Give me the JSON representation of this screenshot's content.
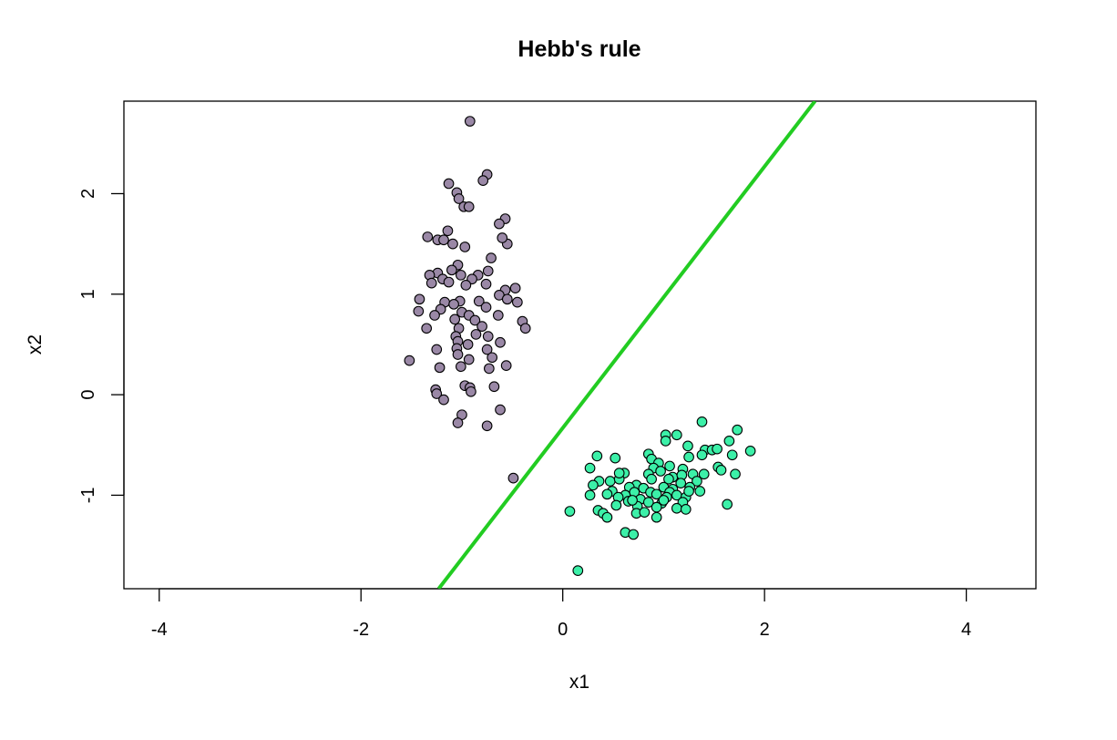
{
  "chart_data": {
    "type": "scatter",
    "title": "Hebb's rule",
    "xlabel": "x1",
    "ylabel": "x2",
    "xlim": [
      -4.35,
      4.69
    ],
    "ylim": [
      -1.93,
      2.92
    ],
    "xticks": [
      -4,
      -2,
      0,
      2,
      4
    ],
    "yticks": [
      -1,
      0,
      1,
      2
    ],
    "grid": false,
    "legend": "none",
    "decision_line": {
      "color": "#22cc22",
      "points": [
        [
          -1.23,
          -1.93
        ],
        [
          2.5,
          2.92
        ]
      ]
    },
    "series": [
      {
        "color": "#9a88a6",
        "points": [
          [
            -0.92,
            2.72
          ],
          [
            -0.75,
            2.19
          ],
          [
            -1.13,
            2.1
          ],
          [
            -0.79,
            2.13
          ],
          [
            -1.05,
            2.01
          ],
          [
            -1.03,
            1.95
          ],
          [
            -0.98,
            1.87
          ],
          [
            -0.93,
            1.87
          ],
          [
            -0.57,
            1.75
          ],
          [
            -0.63,
            1.7
          ],
          [
            -1.14,
            1.63
          ],
          [
            -1.34,
            1.57
          ],
          [
            -1.24,
            1.54
          ],
          [
            -1.18,
            1.54
          ],
          [
            -1.09,
            1.5
          ],
          [
            -0.97,
            1.47
          ],
          [
            -0.55,
            1.5
          ],
          [
            -0.6,
            1.56
          ],
          [
            -0.71,
            1.36
          ],
          [
            -0.74,
            1.23
          ],
          [
            -1.24,
            1.21
          ],
          [
            -1.04,
            1.29
          ],
          [
            -0.84,
            1.19
          ],
          [
            -1.32,
            1.19
          ],
          [
            -1.1,
            1.24
          ],
          [
            -1.01,
            1.19
          ],
          [
            -1.19,
            1.15
          ],
          [
            -0.9,
            1.15
          ],
          [
            -1.3,
            1.11
          ],
          [
            -1.13,
            1.12
          ],
          [
            -0.96,
            1.09
          ],
          [
            -0.76,
            1.1
          ],
          [
            -0.47,
            1.06
          ],
          [
            -0.57,
            1.04
          ],
          [
            -0.63,
            0.99
          ],
          [
            -1.02,
            0.93
          ],
          [
            -0.83,
            0.93
          ],
          [
            -1.42,
            0.95
          ],
          [
            -1.17,
            0.92
          ],
          [
            -1.08,
            0.9
          ],
          [
            -0.76,
            0.87
          ],
          [
            -0.45,
            0.92
          ],
          [
            -1.43,
            0.83
          ],
          [
            -1.21,
            0.85
          ],
          [
            -1.0,
            0.82
          ],
          [
            -0.93,
            0.79
          ],
          [
            -0.64,
            0.79
          ],
          [
            -1.27,
            0.79
          ],
          [
            -1.07,
            0.75
          ],
          [
            -0.87,
            0.74
          ],
          [
            -0.4,
            0.73
          ],
          [
            -1.35,
            0.66
          ],
          [
            -1.03,
            0.66
          ],
          [
            -0.8,
            0.68
          ],
          [
            -0.37,
            0.66
          ],
          [
            -1.06,
            0.58
          ],
          [
            -0.86,
            0.6
          ],
          [
            -0.74,
            0.58
          ],
          [
            -1.04,
            0.53
          ],
          [
            -0.94,
            0.5
          ],
          [
            -1.05,
            0.46
          ],
          [
            -0.75,
            0.45
          ],
          [
            -0.62,
            0.52
          ],
          [
            -1.25,
            0.45
          ],
          [
            -0.93,
            0.35
          ],
          [
            -0.7,
            0.37
          ],
          [
            -1.52,
            0.34
          ],
          [
            -1.04,
            0.4
          ],
          [
            -1.22,
            0.27
          ],
          [
            -1.01,
            0.28
          ],
          [
            -0.73,
            0.26
          ],
          [
            -0.56,
            0.29
          ],
          [
            -0.97,
            0.09
          ],
          [
            -0.92,
            0.07
          ],
          [
            -0.68,
            0.08
          ],
          [
            -1.26,
            0.05
          ],
          [
            -1.25,
            0.01
          ],
          [
            -0.91,
            0.03
          ],
          [
            -1.18,
            -0.05
          ],
          [
            -0.62,
            -0.15
          ],
          [
            -1.0,
            -0.2
          ],
          [
            -1.04,
            -0.28
          ],
          [
            -0.75,
            -0.31
          ],
          [
            -0.49,
            -0.83
          ],
          [
            -0.55,
            0.95
          ]
        ]
      },
      {
        "color": "#3cf0a8",
        "points": [
          [
            1.38,
            -0.27
          ],
          [
            1.73,
            -0.35
          ],
          [
            1.02,
            -0.4
          ],
          [
            1.13,
            -0.4
          ],
          [
            1.65,
            -0.46
          ],
          [
            1.02,
            -0.46
          ],
          [
            1.86,
            -0.56
          ],
          [
            1.41,
            -0.55
          ],
          [
            1.48,
            -0.55
          ],
          [
            1.53,
            -0.54
          ],
          [
            1.24,
            -0.51
          ],
          [
            1.68,
            -0.6
          ],
          [
            1.38,
            -0.6
          ],
          [
            0.34,
            -0.61
          ],
          [
            0.52,
            -0.63
          ],
          [
            0.85,
            -0.59
          ],
          [
            0.88,
            -0.64
          ],
          [
            1.25,
            -0.62
          ],
          [
            0.95,
            -0.68
          ],
          [
            1.54,
            -0.72
          ],
          [
            1.06,
            -0.71
          ],
          [
            1.19,
            -0.74
          ],
          [
            1.57,
            -0.75
          ],
          [
            0.27,
            -0.73
          ],
          [
            0.9,
            -0.73
          ],
          [
            1.29,
            -0.79
          ],
          [
            1.4,
            -0.79
          ],
          [
            1.71,
            -0.79
          ],
          [
            0.61,
            -0.78
          ],
          [
            0.85,
            -0.79
          ],
          [
            0.97,
            -0.76
          ],
          [
            1.09,
            -0.82
          ],
          [
            1.18,
            -0.8
          ],
          [
            0.36,
            -0.86
          ],
          [
            0.47,
            -0.86
          ],
          [
            0.56,
            -0.84
          ],
          [
            0.73,
            -0.9
          ],
          [
            0.88,
            -0.84
          ],
          [
            1.05,
            -0.84
          ],
          [
            1.17,
            -0.88
          ],
          [
            1.33,
            -0.86
          ],
          [
            0.3,
            -0.9
          ],
          [
            0.66,
            -0.92
          ],
          [
            0.8,
            -0.93
          ],
          [
            1.0,
            -0.92
          ],
          [
            1.09,
            -0.94
          ],
          [
            1.26,
            -0.92
          ],
          [
            0.49,
            -0.96
          ],
          [
            0.71,
            -0.97
          ],
          [
            0.87,
            -0.97
          ],
          [
            1.06,
            -0.97
          ],
          [
            1.36,
            -0.96
          ],
          [
            0.44,
            -0.99
          ],
          [
            0.62,
            -1.0
          ],
          [
            0.93,
            -0.99
          ],
          [
            1.13,
            -1.0
          ],
          [
            0.27,
            -1.0
          ],
          [
            0.55,
            -1.02
          ],
          [
            0.77,
            -1.04
          ],
          [
            1.03,
            -1.02
          ],
          [
            1.22,
            -1.02
          ],
          [
            0.65,
            -1.06
          ],
          [
            0.85,
            -1.07
          ],
          [
            0.98,
            -1.08
          ],
          [
            1.19,
            -1.07
          ],
          [
            1.63,
            -1.09
          ],
          [
            0.53,
            -1.1
          ],
          [
            0.74,
            -1.11
          ],
          [
            0.93,
            -1.12
          ],
          [
            1.13,
            -1.13
          ],
          [
            1.22,
            -1.14
          ],
          [
            0.07,
            -1.16
          ],
          [
            0.35,
            -1.15
          ],
          [
            0.4,
            -1.18
          ],
          [
            0.73,
            -1.18
          ],
          [
            0.81,
            -1.17
          ],
          [
            0.44,
            -1.22
          ],
          [
            0.93,
            -1.22
          ],
          [
            0.62,
            -1.37
          ],
          [
            0.7,
            -1.39
          ],
          [
            0.15,
            -1.75
          ],
          [
            1.0,
            -1.05
          ],
          [
            0.56,
            -0.78
          ],
          [
            1.25,
            -0.96
          ],
          [
            0.69,
            -1.05
          ]
        ]
      }
    ]
  }
}
